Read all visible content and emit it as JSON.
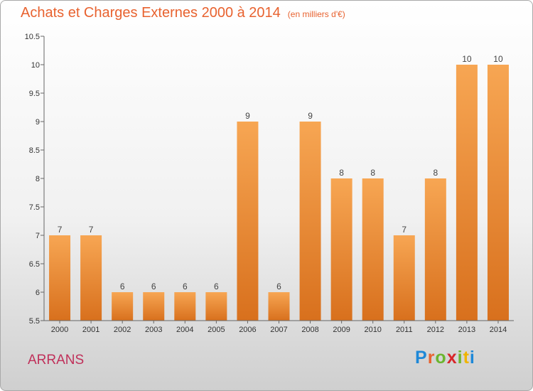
{
  "title": "Achats et Charges Externes 2000 à 2014",
  "subtitle": "(en milliers d'€)",
  "place": "ARRANS",
  "logo": {
    "text": "Proxiti",
    "colors": [
      "#1e88d8",
      "#e8622f",
      "#6bb52f",
      "#d8262a",
      "#6bb52f",
      "#f0b400",
      "#1e88d8"
    ]
  },
  "colors": {
    "bar_top": "#f7a653",
    "bar_bottom": "#d8701d",
    "title": "#e8622f",
    "place": "#c0305a"
  },
  "chart_data": {
    "type": "bar",
    "title": "Achats et Charges Externes 2000 à 2014",
    "subtitle": "(en milliers d'€)",
    "categories": [
      "2000",
      "2001",
      "2002",
      "2003",
      "2004",
      "2005",
      "2006",
      "2007",
      "2008",
      "2009",
      "2010",
      "2011",
      "2012",
      "2013",
      "2014"
    ],
    "values": [
      7,
      7,
      6,
      6,
      6,
      6,
      9,
      6,
      9,
      8,
      8,
      7,
      8,
      10,
      10
    ],
    "data_labels": [
      "7",
      "7",
      "6",
      "6",
      "6",
      "6",
      "9",
      "6",
      "9",
      "8",
      "8",
      "7",
      "8",
      "10",
      "10"
    ],
    "ylim": [
      5.5,
      10.5
    ],
    "yticks": [
      "5.5",
      "6",
      "6.5",
      "7",
      "7.5",
      "8",
      "8.5",
      "9",
      "9.5",
      "10",
      "10.5"
    ],
    "xlabel": "",
    "ylabel": "",
    "grid": false,
    "legend": "none"
  }
}
